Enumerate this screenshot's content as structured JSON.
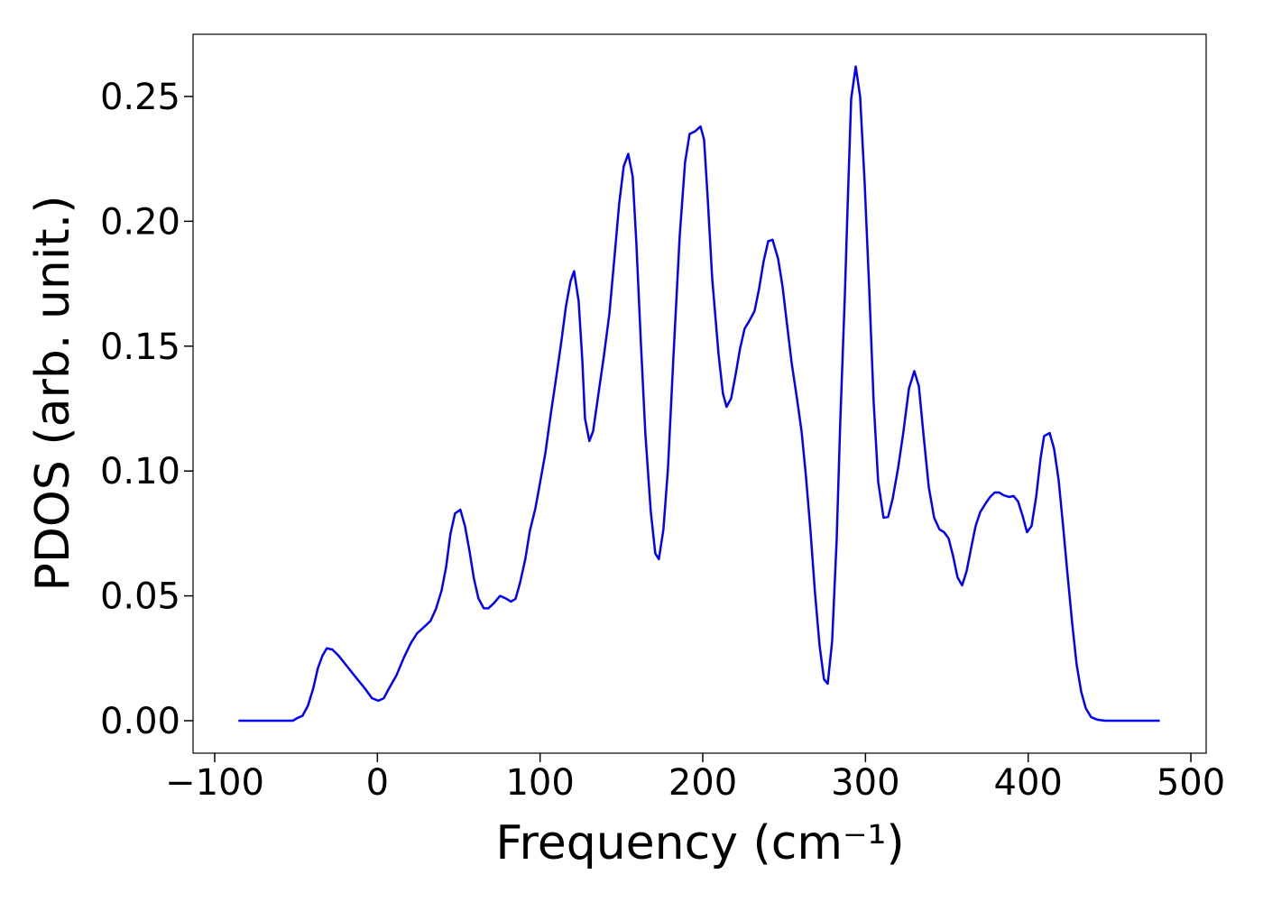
{
  "chart_data": {
    "type": "line",
    "xlabel": "Frequency (cm⁻¹)",
    "ylabel": "PDOS (arb. unit.)",
    "xlim": [
      -113.3,
      509.4
    ],
    "ylim": [
      -0.013,
      0.2749
    ],
    "xticks": [
      {
        "value": -100,
        "label": "−100"
      },
      0,
      100,
      200,
      300,
      400,
      500
    ],
    "yticks": [
      {
        "value": 0,
        "label": "0.00"
      },
      {
        "value": 0.05,
        "label": "0.05"
      },
      {
        "value": 0.1,
        "label": "0.10"
      },
      {
        "value": 0.15,
        "label": "0.15"
      },
      {
        "value": 0.2,
        "label": "0.20"
      },
      {
        "value": 0.25,
        "label": "0.25"
      }
    ],
    "grid": false,
    "series": [
      {
        "color": "#0000ff",
        "x": [
          -85.4,
          -52,
          -49.4,
          -46,
          -42.7,
          -39.4,
          -36.6,
          -33.8,
          -31.1,
          -27.7,
          -23.8,
          -18.9,
          -12.8,
          -7.8,
          -3.3,
          0.6,
          3.9,
          7.2,
          11.6,
          16.1,
          20.5,
          24.4,
          28.8,
          32.7,
          36,
          39.4,
          42.2,
          44.9,
          47.7,
          51,
          53.8,
          56.6,
          59.3,
          62.1,
          65.4,
          68.2,
          71.5,
          75.4,
          78.8,
          82.1,
          84.9,
          87.6,
          91,
          93.7,
          97.1,
          99.8,
          103.2,
          106.5,
          109.8,
          113.1,
          115.9,
          118.7,
          120.9,
          123.7,
          125.9,
          127.6,
          130.3,
          132.6,
          135.9,
          139.2,
          142.6,
          145.9,
          148.6,
          151.4,
          154.2,
          156.9,
          159.2,
          161.9,
          164.7,
          168,
          170.8,
          173,
          175.8,
          178.6,
          181.9,
          185.8,
          189.1,
          191.9,
          195.2,
          198.6,
          200.8,
          203,
          205.8,
          209.7,
          212.4,
          214.6,
          217.4,
          220.2,
          222.9,
          225.7,
          228.5,
          231.8,
          234.6,
          237.4,
          240.2,
          242.9,
          246.3,
          249,
          251.8,
          254.6,
          257.9,
          260.7,
          263.4,
          266.2,
          269,
          271.8,
          274.5,
          276.8,
          279.5,
          282.3,
          284.5,
          287.3,
          289,
          291.2,
          294,
          296.7,
          299.5,
          302.3,
          305,
          307.8,
          311.1,
          313.9,
          316.7,
          320,
          323.3,
          326.7,
          330,
          332.8,
          335.6,
          338.9,
          342.2,
          345.5,
          348.3,
          351.1,
          353.9,
          356.6,
          359.4,
          362.2,
          364.9,
          367.7,
          370.5,
          373.8,
          376.6,
          379.4,
          382.1,
          384.9,
          388.2,
          391,
          393.8,
          396.6,
          399.3,
          402.1,
          404.9,
          407.6,
          409.8,
          413.2,
          415.9,
          418.7,
          421.5,
          424.3,
          427.1,
          429.8,
          432.6,
          435.4,
          438.7,
          442.6,
          447,
          480.9
        ],
        "values": [
          0,
          0,
          0.001,
          0.002,
          0.006,
          0.013,
          0.021,
          0.026,
          0.029,
          0.0285,
          0.026,
          0.022,
          0.017,
          0.013,
          0.009,
          0.008,
          0.009,
          0.013,
          0.018,
          0.025,
          0.031,
          0.035,
          0.0376,
          0.04,
          0.0448,
          0.052,
          0.0614,
          0.0748,
          0.083,
          0.0845,
          0.078,
          0.068,
          0.057,
          0.049,
          0.045,
          0.045,
          0.047,
          0.05,
          0.049,
          0.0477,
          0.0488,
          0.055,
          0.065,
          0.076,
          0.085,
          0.0947,
          0.107,
          0.1225,
          0.137,
          0.152,
          0.166,
          0.176,
          0.18,
          0.168,
          0.145,
          0.121,
          0.112,
          0.116,
          0.131,
          0.146,
          0.163,
          0.187,
          0.207,
          0.222,
          0.227,
          0.218,
          0.191,
          0.152,
          0.115,
          0.084,
          0.067,
          0.0647,
          0.0766,
          0.101,
          0.145,
          0.194,
          0.2236,
          0.235,
          0.236,
          0.238,
          0.2327,
          0.2095,
          0.177,
          0.1467,
          0.131,
          0.1257,
          0.129,
          0.1387,
          0.149,
          0.157,
          0.16,
          0.164,
          0.173,
          0.184,
          0.192,
          0.1926,
          0.185,
          0.174,
          0.1586,
          0.1434,
          0.129,
          0.116,
          0.098,
          0.076,
          0.051,
          0.03,
          0.0166,
          0.0148,
          0.0318,
          0.0726,
          0.1196,
          0.17,
          0.2056,
          0.249,
          0.262,
          0.25,
          0.2153,
          0.173,
          0.128,
          0.0957,
          0.0813,
          0.0816,
          0.0889,
          0.101,
          0.1156,
          0.133,
          0.14,
          0.134,
          0.115,
          0.0936,
          0.0813,
          0.0766,
          0.0755,
          0.073,
          0.0658,
          0.0574,
          0.0542,
          0.06,
          0.069,
          0.078,
          0.0835,
          0.087,
          0.0896,
          0.0914,
          0.0914,
          0.0903,
          0.0896,
          0.09,
          0.0878,
          0.082,
          0.0755,
          0.078,
          0.0896,
          0.105,
          0.114,
          0.1152,
          0.109,
          0.0965,
          0.0777,
          0.0578,
          0.0387,
          0.0224,
          0.0116,
          0.005,
          0.0014,
          0.0004,
          0,
          0
        ]
      }
    ]
  }
}
